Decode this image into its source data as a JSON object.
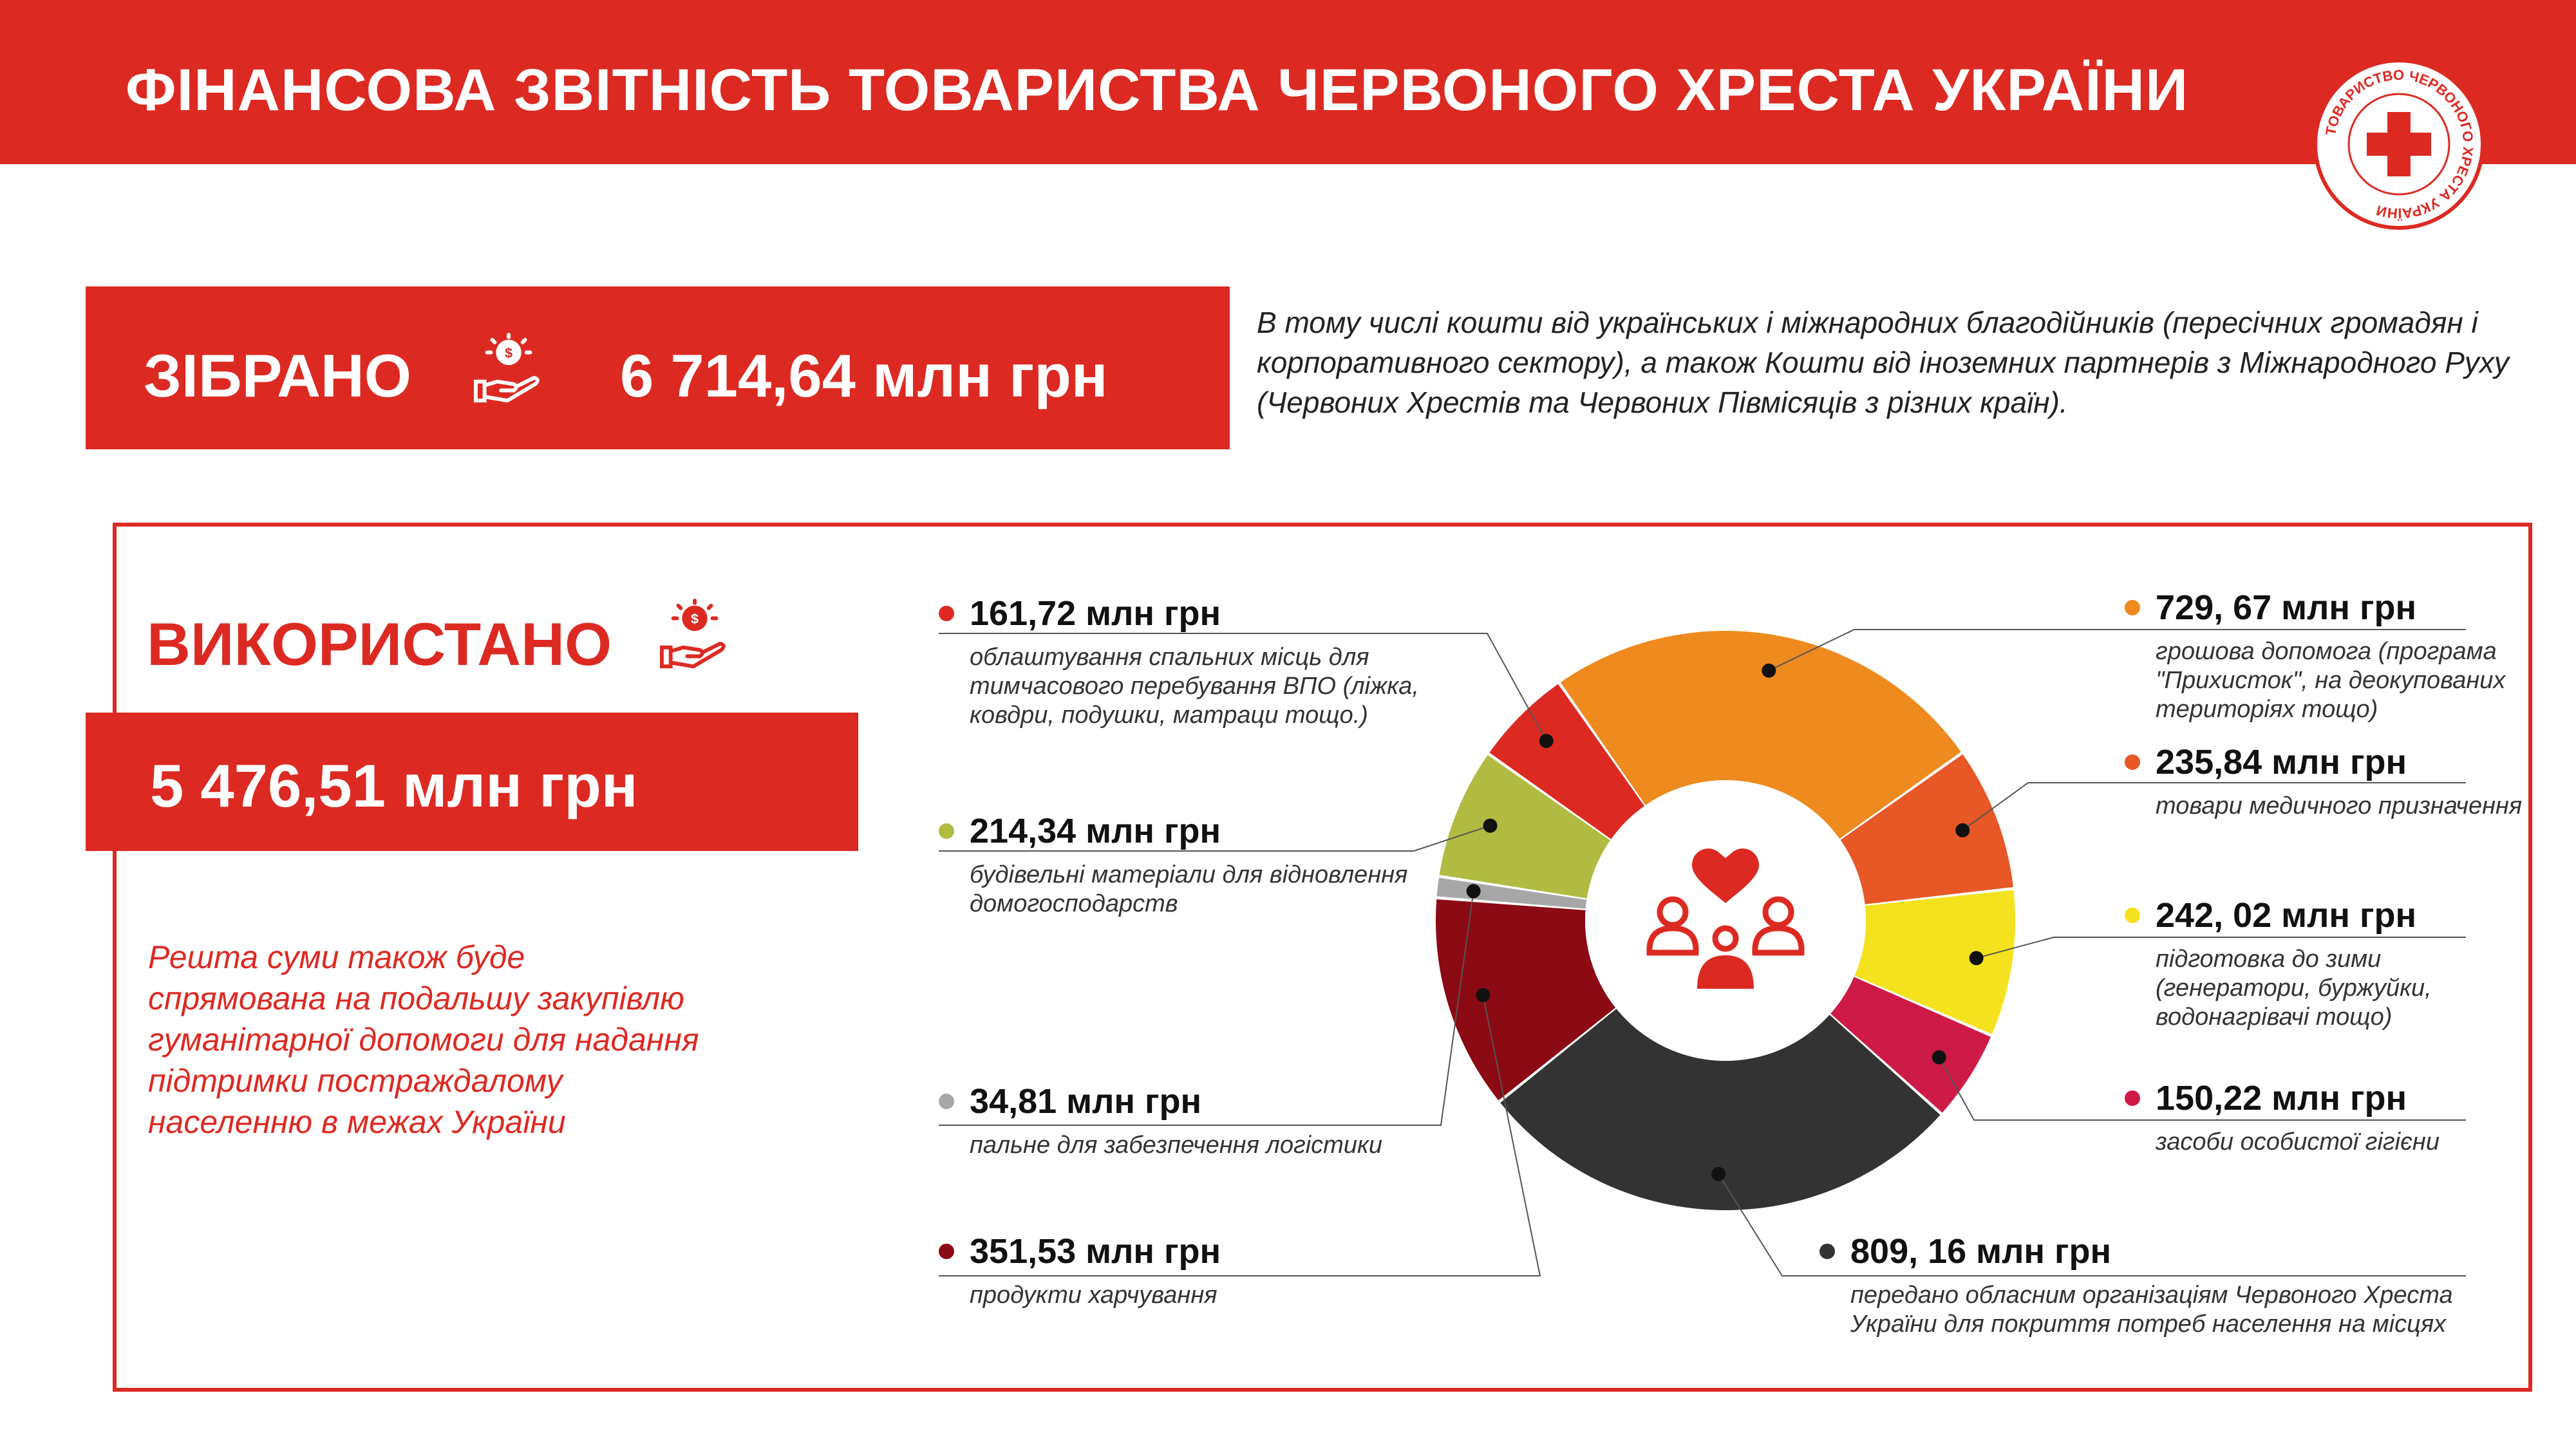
{
  "header": {
    "title": "ФІНАНСОВА ЗВІТНІСТЬ ТОВАРИСТВА ЧЕРВОНОГО ХРЕСТА УКРАЇНИ"
  },
  "logo": {
    "text": "ТОВАРИСТВО ЧЕРВОНОГО ХРЕСТА УКРАЇНИ"
  },
  "collected": {
    "label": "ЗІБРАНО",
    "amount": "6 714,64 млн грн",
    "icon": "hand-coin-icon",
    "note": "В тому числі кошти від українських і міжнародних благодійників (пересічних громадян і корпоративного сектору), а також Кошти від іноземних партнерів з Міжнародного Руху (Червоних Хрестів та Червоних Півмісяців з різних країн)."
  },
  "used": {
    "label": "ВИКОРИСТАНО",
    "amount": "5 476,51 млн грн",
    "icon": "hand-coin-icon",
    "remaining_note": "Решта суми також буде спрямована на подальшу закупівлю гуманітарної допомоги для надання підтримки постраждалому населенню в межах України",
    "center_icon": "people-heart-icon"
  },
  "colors": {
    "brand_red": "#dc2a22"
  },
  "chart_data": {
    "type": "pie",
    "style": "donut",
    "unit": "млн грн",
    "slices": [
      {
        "value": 729.67,
        "label": "729, 67 млн грн",
        "desc": "грошова допомога (програма \"Прихисток\", на деокупованих територіях тощо)",
        "color": "#ee8a1e"
      },
      {
        "value": 235.84,
        "label": "235,84 млн грн",
        "desc": "товари медичного призначення",
        "color": "#e85726"
      },
      {
        "value": 242.02,
        "label": "242, 02 млн грн",
        "desc": "підготовка до зими (генератори, буржуйки, водонагрівачі тощо)",
        "color": "#f4e21f"
      },
      {
        "value": 150.22,
        "label": "150,22 млн грн",
        "desc": "засоби особистої гігієни",
        "color": "#cd1a46"
      },
      {
        "value": 809.16,
        "label": "809, 16 млн грн",
        "desc": "передано обласним організаціям Червоного Хреста України для покриття потреб населення на місцях",
        "color": "#333333"
      },
      {
        "value": 351.53,
        "label": "351,53 млн грн",
        "desc": "продукти харчування",
        "color": "#8b0a14"
      },
      {
        "value": 34.81,
        "label": "34,81 млн грн",
        "desc": "пальне для забезпечення логістики",
        "color": "#a7a7a7"
      },
      {
        "value": 214.34,
        "label": "214,34 млн грн",
        "desc": "будівельні матеріали для відновлення домогосподарств",
        "color": "#b1bb41"
      },
      {
        "value": 161.72,
        "label": "161,72 млн грн",
        "desc": "облаштування спальних місць для тимчасового перебування ВПО (ліжка, ковдри, подушки, матраци тощо.)",
        "color": "#dc2a22"
      }
    ]
  }
}
